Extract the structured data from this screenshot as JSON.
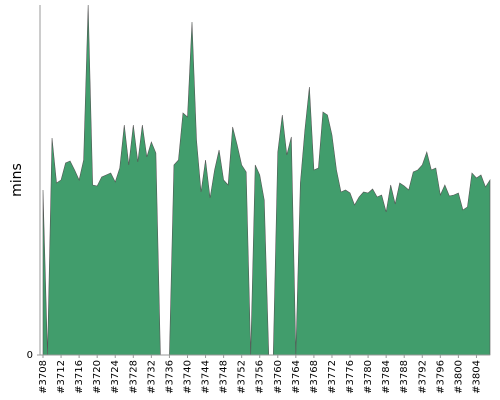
{
  "chart_data": {
    "type": "area",
    "y_label": "mins",
    "color": "#419d6c",
    "categories": [
      "#3708",
      null,
      null,
      null,
      "#3712",
      null,
      null,
      null,
      "#3716",
      null,
      null,
      null,
      "#3720",
      null,
      null,
      null,
      "#3724",
      null,
      null,
      null,
      "#3728",
      null,
      null,
      null,
      "#3732",
      null,
      null,
      null,
      "#3736",
      null,
      null,
      null,
      "#3740",
      null,
      null,
      null,
      "#3744",
      null,
      null,
      null,
      "#3748",
      null,
      null,
      null,
      "#3752",
      null,
      null,
      null,
      "#3756",
      null,
      null,
      null,
      "#3760",
      null,
      null,
      null,
      "#3764",
      null,
      null,
      null,
      "#3768",
      null,
      null,
      null,
      "#3772",
      null,
      null,
      null,
      "#3776",
      null,
      null,
      null,
      "#3780",
      null,
      null,
      null,
      "#3784",
      null,
      null,
      null,
      "#3788",
      null,
      null,
      null,
      "#3792",
      null,
      null,
      null,
      "#3796",
      null,
      null,
      null,
      "#3800",
      null,
      null,
      null,
      "#3804",
      null,
      null,
      null
    ],
    "values": [
      16.5,
      0,
      21.7,
      17.2,
      17.5,
      19.2,
      19.4,
      18.5,
      17.5,
      19.5,
      35,
      17,
      16.9,
      17.8,
      18,
      18.2,
      17.3,
      18.7,
      23,
      19,
      23,
      19.3,
      23,
      19.8,
      21.3,
      20.2,
      0,
      0,
      0,
      19,
      19.5,
      24.2,
      23.8,
      33.3,
      21.5,
      16.3,
      19.5,
      15.7,
      18.5,
      20.5,
      17.5,
      17,
      22.8,
      21,
      19,
      18.3,
      0,
      19,
      18,
      15.5,
      0,
      0,
      20.3,
      24,
      20,
      21.8,
      0,
      17.2,
      22.5,
      26.8,
      18.5,
      18.7,
      24.3,
      24,
      22,
      18.5,
      16.3,
      16.5,
      16.2,
      15,
      15.8,
      16.3,
      16.2,
      16.6,
      15.8,
      16,
      14.3,
      17,
      15.1,
      17.2,
      16.9,
      16.5,
      18.3,
      18.5,
      19,
      20.3,
      18.5,
      18.7,
      16,
      17,
      15.9,
      16,
      16.2,
      14.5,
      14.8,
      18.2,
      17.7,
      18,
      16.8,
      17.5
    ],
    "ylim": [
      0,
      35
    ],
    "yticks": [
      0
    ]
  }
}
